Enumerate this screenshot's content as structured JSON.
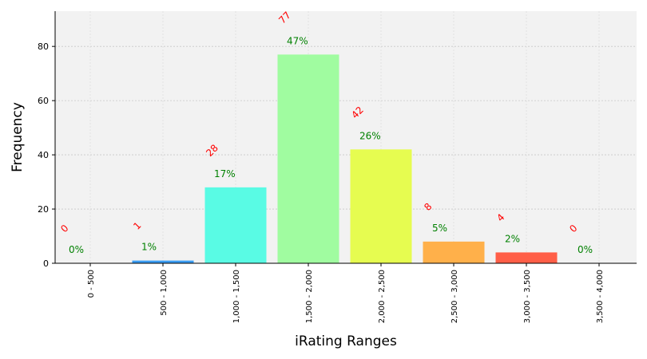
{
  "chart_data": {
    "type": "bar",
    "xlabel": "iRating Ranges",
    "ylabel": "Frequency",
    "ylim": [
      0,
      93
    ],
    "yticks": [
      0,
      20,
      40,
      60,
      80
    ],
    "grid": true,
    "categories": [
      "0 - 500",
      "500 - 1,000",
      "1,000 - 1,500",
      "1,500 - 2,000",
      "2,000 - 2,500",
      "2,500 - 3,000",
      "3,000 - 3,500",
      "3,500 - 4,000"
    ],
    "values": [
      0,
      1,
      28,
      77,
      42,
      8,
      4,
      0
    ],
    "count_labels": [
      "0",
      "1",
      "28",
      "77",
      "42",
      "8",
      "4",
      "0"
    ],
    "percent_labels": [
      "0%",
      "1%",
      "17%",
      "47%",
      "26%",
      "5%",
      "2%",
      "0%"
    ],
    "colors": [
      "#3d3dff",
      "#3a9cf2",
      "#59fbe4",
      "#a0fca0",
      "#e6fc50",
      "#ffb04a",
      "#ff5e47",
      "#e61e1e"
    ],
    "count_label_color": "#ff0000",
    "percent_label_color": "#008000",
    "plot_background": "#f2f2f2"
  }
}
